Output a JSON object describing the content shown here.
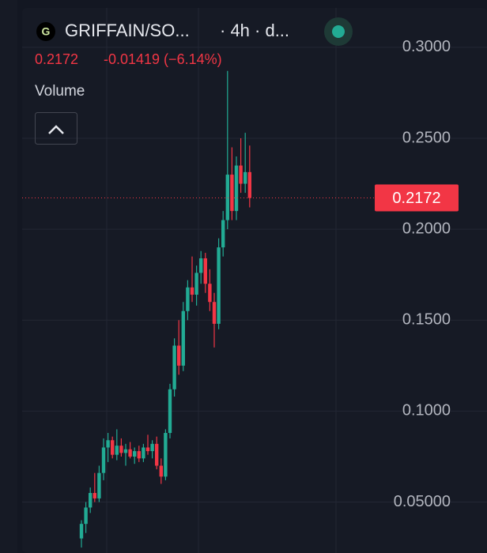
{
  "header": {
    "symbol": "GRIFFAIN/SO...",
    "interval": "· 4h · d...",
    "change": "-0.01419 (−6.14%)",
    "volume_label": "Volume"
  },
  "chart_data": {
    "type": "candlestick",
    "up_color": "#22ab94",
    "down_color": "#f23645",
    "open": [
      0.03,
      0.038,
      0.047,
      0.055,
      0.052,
      0.066,
      0.08,
      0.084,
      0.076,
      0.081,
      0.077,
      0.079,
      0.075,
      0.078,
      0.074,
      0.08,
      0.078,
      0.082,
      0.07,
      0.064,
      0.088,
      0.112,
      0.136,
      0.125,
      0.155,
      0.168,
      0.164,
      0.176,
      0.184,
      0.17,
      0.16,
      0.148,
      0.19,
      0.205,
      0.23,
      0.21,
      0.235,
      0.225,
      0.2314
    ],
    "high": [
      0.04,
      0.05,
      0.058,
      0.066,
      0.07,
      0.085,
      0.088,
      0.086,
      0.09,
      0.085,
      0.082,
      0.083,
      0.08,
      0.081,
      0.082,
      0.087,
      0.084,
      0.086,
      0.074,
      0.09,
      0.115,
      0.14,
      0.15,
      0.16,
      0.172,
      0.185,
      0.18,
      0.188,
      0.187,
      0.178,
      0.165,
      0.195,
      0.21,
      0.287,
      0.245,
      0.24,
      0.25,
      0.253,
      0.246
    ],
    "low": [
      0.025,
      0.033,
      0.044,
      0.05,
      0.05,
      0.062,
      0.072,
      0.074,
      0.073,
      0.075,
      0.07,
      0.074,
      0.071,
      0.072,
      0.072,
      0.076,
      0.074,
      0.068,
      0.06,
      0.062,
      0.085,
      0.108,
      0.12,
      0.122,
      0.15,
      0.16,
      0.158,
      0.17,
      0.165,
      0.155,
      0.135,
      0.145,
      0.185,
      0.2,
      0.205,
      0.205,
      0.22,
      0.22,
      0.212
    ],
    "close": [
      0.038,
      0.047,
      0.055,
      0.052,
      0.066,
      0.08,
      0.084,
      0.076,
      0.081,
      0.077,
      0.079,
      0.075,
      0.078,
      0.074,
      0.08,
      0.078,
      0.082,
      0.07,
      0.064,
      0.088,
      0.112,
      0.136,
      0.125,
      0.155,
      0.168,
      0.164,
      0.176,
      0.184,
      0.17,
      0.16,
      0.148,
      0.19,
      0.205,
      0.23,
      0.21,
      0.235,
      0.225,
      0.2314,
      0.2172
    ],
    "ylim": [
      0.022,
      0.326
    ],
    "yticks": [
      {
        "value": 0.3,
        "label": "0.3000"
      },
      {
        "value": 0.25,
        "label": "0.2500"
      },
      {
        "value": 0.2,
        "label": "0.2000"
      },
      {
        "value": 0.15,
        "label": "0.1500"
      },
      {
        "value": 0.1,
        "label": "0.1000"
      },
      {
        "value": 0.05,
        "label": "0.05000"
      }
    ],
    "grid": true,
    "last_price": {
      "value": 0.2172,
      "label": "0.2172"
    }
  }
}
